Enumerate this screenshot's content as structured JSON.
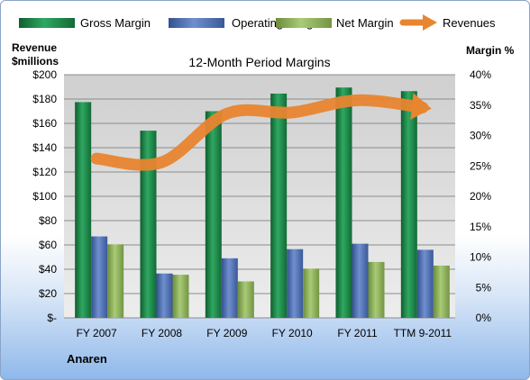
{
  "chart_data": {
    "type": "bar",
    "title": "12-Month Period Margins",
    "company": "Anaren",
    "y_left_label": [
      "Revenue",
      "$millions"
    ],
    "y_right_label": "Margin %",
    "categories": [
      "FY 2007",
      "FY 2008",
      "FY 2009",
      "FY 2010",
      "FY 2011",
      "TTM 9-2011"
    ],
    "y_left_ticks": [
      "$-",
      "$20",
      "$40",
      "$60",
      "$80",
      "$100",
      "$120",
      "$140",
      "$160",
      "$180",
      "$200"
    ],
    "y_right_ticks": [
      "0%",
      "5%",
      "10%",
      "15%",
      "20%",
      "25%",
      "30%",
      "35%",
      "40%"
    ],
    "ylim_left": [
      0,
      200
    ],
    "ylim_right": [
      0,
      40
    ],
    "grid": true,
    "legend_position": "top",
    "series": [
      {
        "name": "Gross Margin",
        "type": "bar",
        "axis": "right",
        "color": "#1e8a4a",
        "values": [
          35.5,
          30.8,
          34.0,
          36.9,
          37.9,
          37.3
        ]
      },
      {
        "name": "Operating Margin",
        "type": "bar",
        "axis": "right",
        "color": "#4f6fb3",
        "values": [
          13.4,
          7.3,
          9.8,
          11.3,
          12.2,
          11.2
        ]
      },
      {
        "name": "Net Margin",
        "type": "bar",
        "axis": "right",
        "color": "#8db35a",
        "values": [
          12.1,
          7.1,
          6.0,
          8.1,
          9.2,
          8.6
        ]
      },
      {
        "name": "Revenues",
        "type": "line",
        "axis": "left",
        "color": "#e8852f",
        "values": [
          131,
          128,
          168,
          169,
          179,
          173
        ]
      }
    ]
  }
}
